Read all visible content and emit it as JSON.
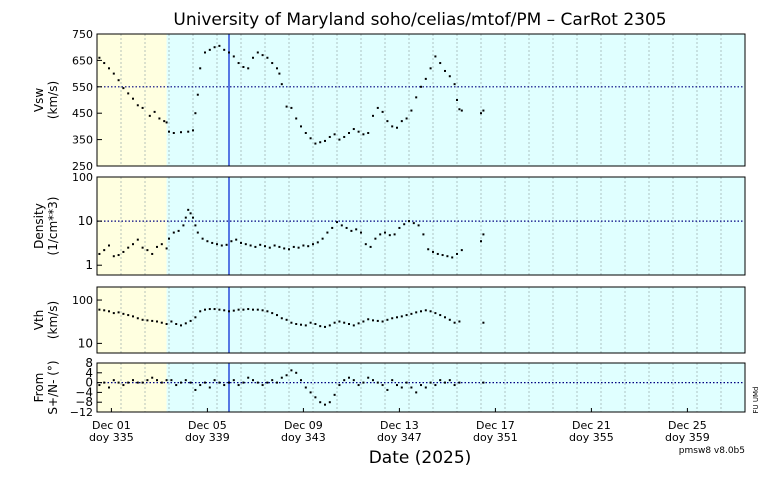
{
  "title": "University of Maryland  soho/celias/mtof/PM – CarRot 2305",
  "xlabel": "Date (2025)",
  "version": "pmsw8 v8.0b5",
  "side_credit": "FU UMd",
  "colors": {
    "bg_yellow": "#ffffe0",
    "bg_cyan": "#e0ffff",
    "vline": "#3355dd",
    "refline": "#000080",
    "points": "#000000"
  },
  "chart_data": [
    {
      "type": "scatter",
      "name": "Vsw",
      "ylabel": [
        "Vsw",
        "(km/s)"
      ],
      "ylim": [
        250,
        750
      ],
      "scale": "linear",
      "yticks": [
        250,
        350,
        450,
        550,
        650,
        750
      ],
      "ytick_labels": [
        "250",
        "350",
        "450",
        "550",
        "650",
        "750"
      ],
      "refline": 550,
      "series": [
        {
          "x": [
            0.1,
            0.3,
            0.5,
            0.7,
            0.9,
            1.1,
            1.3,
            1.5,
            1.7,
            1.9,
            2.2,
            2.4,
            2.6,
            2.8,
            2.9,
            3.0,
            3.2,
            3.5,
            3.8,
            4.0,
            4.1,
            4.2,
            4.3,
            4.5,
            4.7,
            4.9,
            5.1,
            5.3,
            5.5,
            5.7,
            5.9,
            6.1,
            6.3,
            6.5,
            6.7,
            6.9,
            7.1,
            7.3,
            7.5,
            7.6,
            7.7,
            7.9,
            8.1,
            8.3,
            8.5,
            8.7,
            8.9,
            9.1,
            9.3,
            9.5,
            9.7,
            9.9,
            10.1,
            10.3,
            10.5,
            10.7,
            10.9,
            11.1,
            11.3,
            11.5,
            11.7,
            11.9,
            12.1,
            12.3,
            12.5,
            12.7,
            12.9,
            13.1,
            13.3,
            13.5,
            13.7,
            13.9,
            14.1,
            14.3,
            14.5,
            14.7,
            14.9,
            15.0,
            15.1,
            15.2,
            16.0,
            16.1
          ],
          "y": [
            660,
            640,
            620,
            600,
            575,
            545,
            525,
            505,
            480,
            470,
            440,
            455,
            430,
            420,
            415,
            380,
            375,
            378,
            380,
            385,
            450,
            520,
            620,
            680,
            690,
            700,
            705,
            690,
            680,
            665,
            640,
            625,
            620,
            660,
            680,
            670,
            660,
            640,
            620,
            600,
            560,
            475,
            470,
            430,
            400,
            375,
            355,
            335,
            340,
            345,
            360,
            370,
            350,
            360,
            375,
            390,
            380,
            370,
            375,
            440,
            470,
            455,
            420,
            400,
            395,
            420,
            430,
            460,
            510,
            550,
            580,
            620,
            665,
            640,
            610,
            590,
            560,
            500,
            465,
            460,
            450,
            460
          ]
        }
      ]
    },
    {
      "type": "scatter",
      "name": "Density",
      "ylabel": [
        "Density",
        "(1/cm**3)"
      ],
      "ylim": [
        0.6,
        100
      ],
      "scale": "log",
      "yticks": [
        1,
        10,
        100
      ],
      "ytick_labels": [
        "1",
        "10",
        "100"
      ],
      "refline": 10,
      "series": [
        {
          "x": [
            0.1,
            0.3,
            0.5,
            0.7,
            0.9,
            1.1,
            1.3,
            1.5,
            1.7,
            1.9,
            2.1,
            2.3,
            2.5,
            2.7,
            2.9,
            3.0,
            3.2,
            3.4,
            3.6,
            3.7,
            3.8,
            3.9,
            4.0,
            4.1,
            4.2,
            4.4,
            4.6,
            4.8,
            5.0,
            5.2,
            5.4,
            5.6,
            5.8,
            6.0,
            6.2,
            6.4,
            6.6,
            6.8,
            7.0,
            7.2,
            7.4,
            7.6,
            7.8,
            8.0,
            8.2,
            8.4,
            8.6,
            8.8,
            9.0,
            9.2,
            9.4,
            9.6,
            9.8,
            10.0,
            10.2,
            10.4,
            10.6,
            10.8,
            11.0,
            11.2,
            11.4,
            11.6,
            11.8,
            12.0,
            12.2,
            12.4,
            12.6,
            12.8,
            13.0,
            13.2,
            13.4,
            13.6,
            13.8,
            14.0,
            14.2,
            14.4,
            14.6,
            14.8,
            15.0,
            15.2,
            16.0,
            16.1
          ],
          "y": [
            1.8,
            2.2,
            2.8,
            1.6,
            1.7,
            2.0,
            2.5,
            3.0,
            3.8,
            2.5,
            2.2,
            1.8,
            2.6,
            3.0,
            2.4,
            4.0,
            5.5,
            6.0,
            8.0,
            12.0,
            18.0,
            15.0,
            12.0,
            8.0,
            5.5,
            4.0,
            3.5,
            3.2,
            3.0,
            2.8,
            2.9,
            3.5,
            3.8,
            3.2,
            3.0,
            2.8,
            2.6,
            2.9,
            2.7,
            2.5,
            2.8,
            2.6,
            2.4,
            2.3,
            2.6,
            2.5,
            2.8,
            2.7,
            3.0,
            3.3,
            4.0,
            5.5,
            7.0,
            9.5,
            8.0,
            7.0,
            6.0,
            6.5,
            5.5,
            3.0,
            2.6,
            4.0,
            5.0,
            5.5,
            4.8,
            5.0,
            7.0,
            8.5,
            10.0,
            9.0,
            8.0,
            5.0,
            2.3,
            2.0,
            1.8,
            1.7,
            1.6,
            1.5,
            1.8,
            2.2,
            3.5,
            5.0
          ]
        }
      ]
    },
    {
      "type": "scatter",
      "name": "Vth",
      "ylabel": [
        "Vth",
        "(km/s)"
      ],
      "ylim": [
        6,
        200
      ],
      "scale": "log",
      "yticks": [
        10,
        100
      ],
      "ytick_labels": [
        "10",
        "100"
      ],
      "series": [
        {
          "x": [
            0.1,
            0.3,
            0.5,
            0.7,
            0.9,
            1.1,
            1.3,
            1.5,
            1.7,
            1.9,
            2.1,
            2.3,
            2.5,
            2.7,
            2.9,
            3.1,
            3.3,
            3.5,
            3.7,
            3.9,
            4.1,
            4.3,
            4.5,
            4.7,
            4.9,
            5.1,
            5.3,
            5.5,
            5.7,
            5.9,
            6.1,
            6.3,
            6.5,
            6.7,
            6.9,
            7.1,
            7.3,
            7.5,
            7.7,
            7.9,
            8.1,
            8.3,
            8.5,
            8.7,
            8.9,
            9.1,
            9.3,
            9.5,
            9.7,
            9.9,
            10.1,
            10.3,
            10.5,
            10.7,
            10.9,
            11.1,
            11.3,
            11.5,
            11.7,
            11.9,
            12.1,
            12.3,
            12.5,
            12.7,
            12.9,
            13.1,
            13.3,
            13.5,
            13.7,
            13.9,
            14.1,
            14.3,
            14.5,
            14.7,
            14.9,
            15.1,
            16.1
          ],
          "y": [
            60,
            58,
            55,
            50,
            52,
            48,
            45,
            42,
            38,
            35,
            34,
            33,
            32,
            30,
            28,
            32,
            28,
            26,
            29,
            33,
            40,
            55,
            60,
            62,
            62,
            60,
            58,
            55,
            57,
            60,
            60,
            62,
            60,
            60,
            58,
            55,
            50,
            45,
            38,
            35,
            30,
            28,
            27,
            26,
            30,
            28,
            25,
            24,
            26,
            30,
            32,
            30,
            28,
            26,
            29,
            32,
            36,
            34,
            33,
            32,
            35,
            38,
            40,
            42,
            45,
            48,
            52,
            55,
            58,
            55,
            50,
            45,
            40,
            35,
            30,
            32,
            30
          ]
        }
      ]
    },
    {
      "type": "scatter",
      "name": "From S+/N- (°)",
      "ylabel": [
        "From",
        "S+/N- (°)"
      ],
      "ylim": [
        -12,
        8
      ],
      "scale": "linear",
      "yticks": [
        -12,
        -8,
        -4,
        0,
        4,
        8
      ],
      "ytick_labels": [
        "−12",
        "−8",
        "−4",
        "0",
        "4",
        "8"
      ],
      "refline": 0,
      "series": [
        {
          "x": [
            0.1,
            0.3,
            0.5,
            0.7,
            0.9,
            1.1,
            1.3,
            1.5,
            1.7,
            1.9,
            2.1,
            2.3,
            2.5,
            2.7,
            2.9,
            3.1,
            3.3,
            3.5,
            3.7,
            3.9,
            4.1,
            4.3,
            4.5,
            4.7,
            4.9,
            5.1,
            5.3,
            5.5,
            5.7,
            5.9,
            6.1,
            6.3,
            6.5,
            6.7,
            6.9,
            7.1,
            7.3,
            7.5,
            7.7,
            7.9,
            8.1,
            8.3,
            8.5,
            8.7,
            8.9,
            9.1,
            9.3,
            9.5,
            9.7,
            9.9,
            10.1,
            10.3,
            10.5,
            10.7,
            10.9,
            11.1,
            11.3,
            11.5,
            11.7,
            11.9,
            12.1,
            12.3,
            12.5,
            12.7,
            12.9,
            13.1,
            13.3,
            13.5,
            13.7,
            13.9,
            14.1,
            14.3,
            14.5,
            14.7,
            14.9,
            15.1,
            16.1
          ],
          "y": [
            -1,
            0,
            -2,
            1,
            0,
            -1,
            0,
            1,
            0,
            0,
            1,
            2,
            1,
            0,
            1,
            1,
            -1,
            0,
            1,
            0,
            -3,
            -1,
            0,
            -2,
            1,
            0,
            -1,
            0,
            1,
            -1,
            0,
            2,
            1,
            0,
            -1,
            0,
            1,
            0,
            2,
            3,
            5,
            4,
            1,
            -2,
            -4,
            -6,
            -8,
            -9,
            -8,
            -5,
            -1,
            1,
            2,
            1,
            -1,
            0,
            2,
            1,
            0,
            -1,
            -3,
            1,
            -1,
            -2,
            0,
            -2,
            -4,
            -1,
            -2,
            0,
            -1,
            1,
            0,
            1,
            -1,
            0,
            0
          ]
        }
      ]
    }
  ],
  "x_axis": {
    "range": [
      0,
      27
    ],
    "tick_labels": [
      {
        "x": 0.6,
        "date": "Dec 01",
        "doy": "doy 335"
      },
      {
        "x": 4.6,
        "date": "Dec 05",
        "doy": "doy 339"
      },
      {
        "x": 8.6,
        "date": "Dec 09",
        "doy": "doy 343"
      },
      {
        "x": 12.6,
        "date": "Dec 13",
        "doy": "doy 347"
      },
      {
        "x": 16.6,
        "date": "Dec 17",
        "doy": "doy 351"
      },
      {
        "x": 20.6,
        "date": "Dec 21",
        "doy": "doy 355"
      },
      {
        "x": 24.6,
        "date": "Dec 25",
        "doy": "doy 359"
      }
    ],
    "major_grid_every": 1,
    "shade_split": 2.9,
    "marker_x": 5.5
  }
}
